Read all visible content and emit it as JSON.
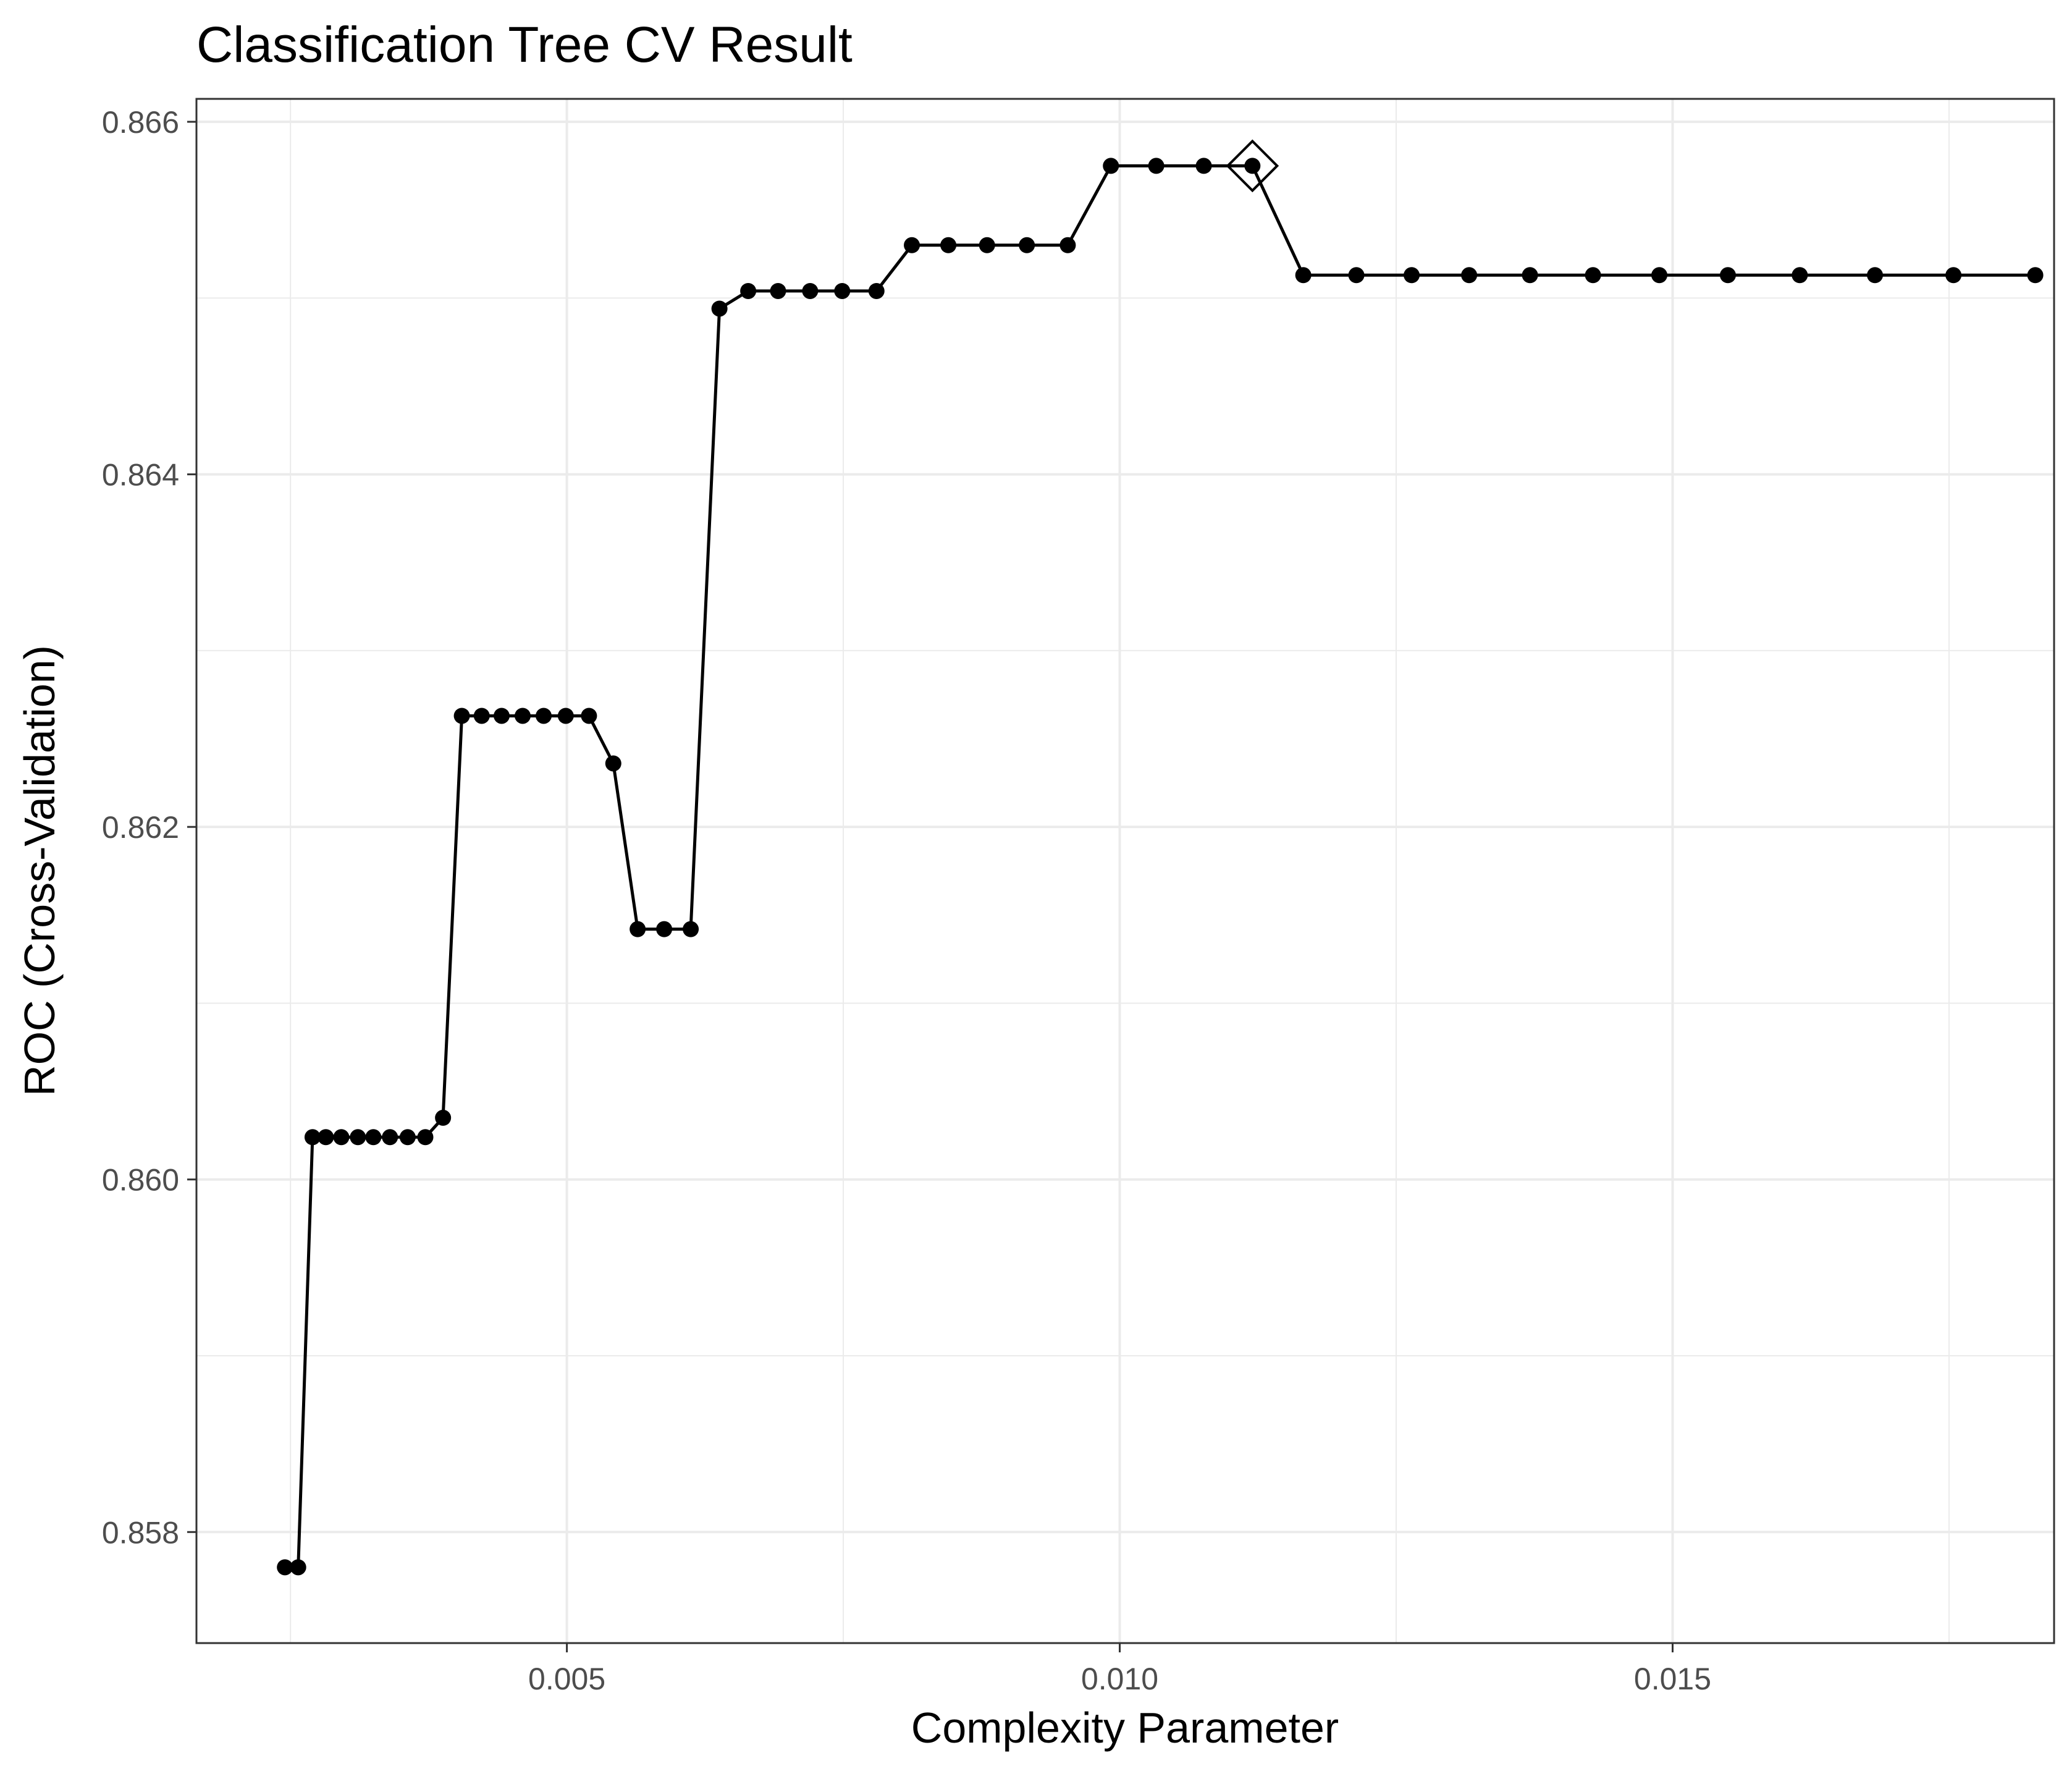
{
  "chart_data": {
    "type": "line",
    "title": "Classification Tree CV Result",
    "xlabel": "Complexity Parameter",
    "ylabel": "ROC (Cross-Validation)",
    "xlim": [
      0.00165,
      0.01845
    ],
    "ylim": [
      0.85737,
      0.86613
    ],
    "x_ticks": [
      0.005,
      0.01,
      0.015
    ],
    "x_tick_labels": [
      "0.005",
      "0.010",
      "0.015"
    ],
    "y_ticks": [
      0.858,
      0.86,
      0.862,
      0.864,
      0.866
    ],
    "y_tick_labels": [
      "0.858",
      "0.860",
      "0.862",
      "0.864",
      "0.866"
    ],
    "grid": true,
    "colors": {
      "line": "#000000",
      "grid": "#ebebeb",
      "panel_border": "#333333",
      "tick_label": "#4d4d4d"
    },
    "series": [
      {
        "x": [
          0.00245,
          0.00257,
          0.0027,
          0.00282,
          0.00296,
          0.00311,
          0.00325,
          0.0034,
          0.00356,
          0.00372,
          0.00388,
          0.00405,
          0.00423,
          0.00441,
          0.0046,
          0.00479,
          0.00499,
          0.0052,
          0.00542,
          0.00564,
          0.00588,
          0.00612,
          0.00638,
          0.00664,
          0.00691,
          0.0072,
          0.00749,
          0.0078,
          0.00812,
          0.00845,
          0.0088,
          0.00916,
          0.00953,
          0.00992,
          0.01033,
          0.01076,
          0.0112,
          0.01166,
          0.01214,
          0.01264,
          0.01316,
          0.01371,
          0.01428,
          0.01488,
          0.0155,
          0.01615,
          0.01683,
          0.01754,
          0.01828
        ],
        "y": [
          0.8578,
          0.8578,
          0.86024,
          0.86024,
          0.86024,
          0.86024,
          0.86024,
          0.86024,
          0.86024,
          0.86024,
          0.86035,
          0.86263,
          0.86263,
          0.86263,
          0.86263,
          0.86263,
          0.86263,
          0.86263,
          0.86236,
          0.86142,
          0.86142,
          0.86142,
          0.86494,
          0.86504,
          0.86504,
          0.86504,
          0.86504,
          0.86504,
          0.8653,
          0.8653,
          0.8653,
          0.8653,
          0.8653,
          0.86575,
          0.86575,
          0.86575,
          0.86575,
          0.86513,
          0.86513,
          0.86513,
          0.86513,
          0.86513,
          0.86513,
          0.86513,
          0.86513,
          0.86513,
          0.86513,
          0.86513,
          0.86513
        ]
      }
    ],
    "best_point": {
      "x": 0.0112,
      "y": 0.86575,
      "marker": "diamond"
    }
  }
}
